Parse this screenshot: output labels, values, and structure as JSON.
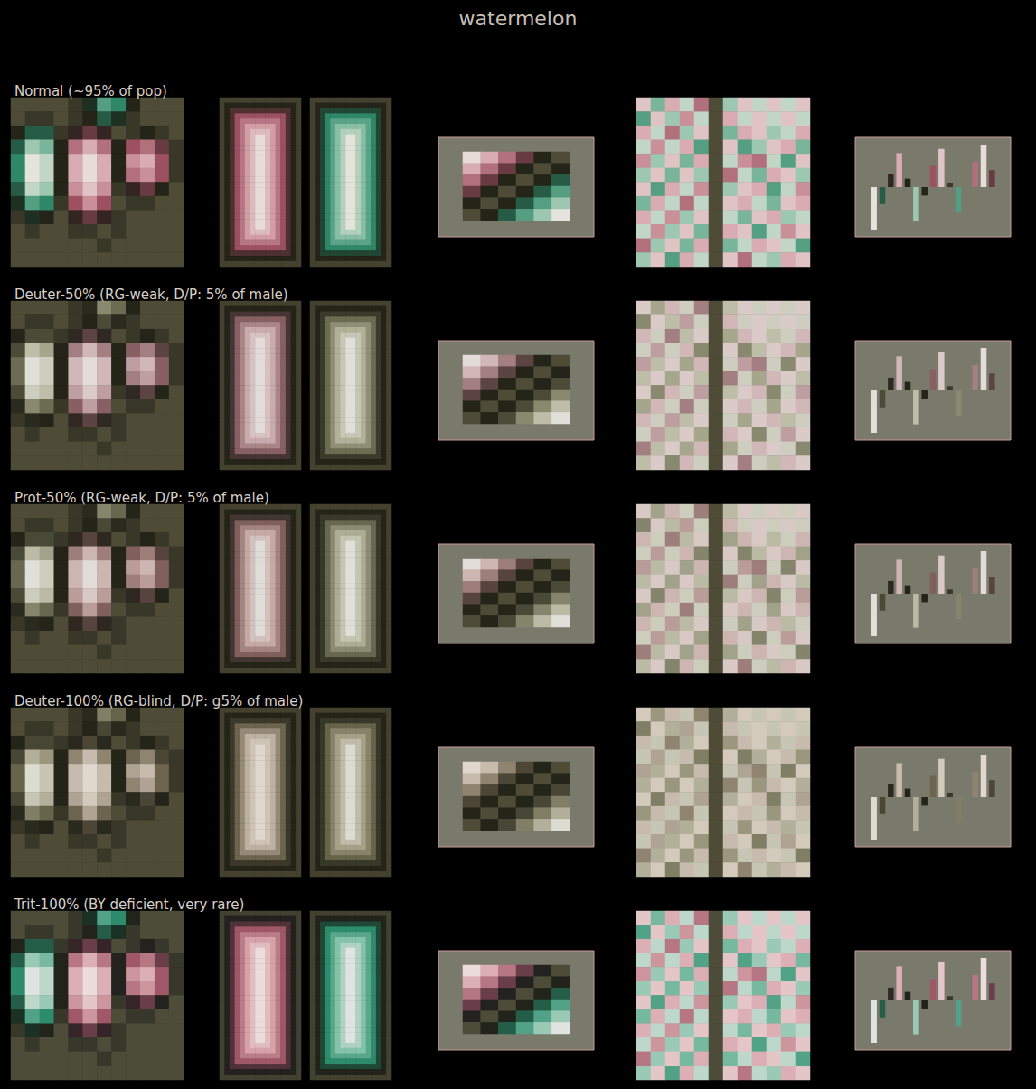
{
  "chart_data": {
    "type": "heatmap",
    "title": "watermelon",
    "tick_labels": false,
    "color_range": [
      -1,
      1
    ],
    "ylim": [
      -1,
      1
    ],
    "rows": [
      {
        "label": "Normal (~95% of pop)",
        "colors": [
          "#e4e4dc",
          "#8cc0a8",
          "#2e8868",
          "#1a1a12",
          "#4e4c36",
          "#1a1a12",
          "#9c5060",
          "#d4a0a8",
          "#e8dcd8"
        ]
      },
      {
        "label": "Deuter-50% (RG-weak, D/P: 5% of male)",
        "colors": [
          "#e0e0d8",
          "#b4b49c",
          "#6c6c52",
          "#1a1a12",
          "#4e4c36",
          "#1a1a12",
          "#886064",
          "#ccaeb0",
          "#e4dcd8"
        ]
      },
      {
        "label": "Prot-50% (RG-weak, D/P: 5% of male)",
        "colors": [
          "#e0e0d8",
          "#b0b098",
          "#686850",
          "#1a1a12",
          "#4e4c36",
          "#1a1a12",
          "#80605c",
          "#c8aca8",
          "#e2dcd8"
        ]
      },
      {
        "label": "Deuter-100% (RG-blind, D/P: g5% of male)",
        "colors": [
          "#dcdcd0",
          "#a8a48c",
          "#66644a",
          "#1a1a12",
          "#4e4c36",
          "#1a1a12",
          "#6c644e",
          "#c0b4a4",
          "#e0d8cc"
        ]
      },
      {
        "label": "Trit-100% (BY deficient, very rare)",
        "colors": [
          "#e0e4e0",
          "#88c4ac",
          "#2c8c6c",
          "#181a14",
          "#4c4c38",
          "#1a1818",
          "#a05868",
          "#d8a4ac",
          "#ecdcdc"
        ]
      }
    ],
    "panels": [
      {
        "type": "heatmap",
        "values": [
          [
            0,
            0,
            0,
            0,
            0.1,
            -0.3,
            -0.6,
            -0.5,
            -0.2,
            0,
            0,
            0
          ],
          [
            0,
            -0.1,
            -0.1,
            0,
            0.1,
            -0.2,
            -0.4,
            -0.3,
            -0.1,
            0,
            0,
            0
          ],
          [
            -0.2,
            -0.4,
            -0.4,
            -0.1,
            0.3,
            0.4,
            0.3,
            0,
            0.1,
            0.2,
            0.1,
            0
          ],
          [
            -0.4,
            -0.8,
            -0.7,
            -0.2,
            0.6,
            0.8,
            0.6,
            0.2,
            0.5,
            0.6,
            0.4,
            0.1
          ],
          [
            -0.5,
            -1,
            -0.9,
            -0.2,
            0.8,
            1,
            0.8,
            0.2,
            0.7,
            0.8,
            0.5,
            0.1
          ],
          [
            -0.5,
            -1,
            -0.9,
            -0.2,
            0.8,
            1,
            0.8,
            0.2,
            0.6,
            0.7,
            0.5,
            0.1
          ],
          [
            -0.4,
            -0.9,
            -0.8,
            -0.2,
            0.7,
            0.9,
            0.7,
            0.1,
            0.3,
            0.4,
            0.2,
            0
          ],
          [
            -0.3,
            -0.6,
            -0.5,
            -0.1,
            0.5,
            0.7,
            0.5,
            0,
            0.1,
            0.1,
            0,
            0
          ],
          [
            -0.1,
            -0.3,
            -0.2,
            0,
            0.3,
            0.4,
            0.3,
            -0.1,
            0,
            0,
            0,
            0
          ],
          [
            0,
            -0.1,
            0,
            0,
            0.1,
            0.1,
            0,
            -0.1,
            0,
            0,
            0,
            0
          ],
          [
            0,
            0,
            0,
            0,
            0,
            0,
            -0.1,
            0,
            0,
            0,
            0,
            0
          ],
          [
            0,
            0,
            0,
            0,
            0,
            0,
            0,
            0,
            0,
            0,
            0,
            0
          ]
        ]
      },
      {
        "type": "rings",
        "values": [
          [
            0.05,
            0.2,
            0.35,
            0.5,
            0.62,
            0.74,
            0.86,
            1
          ],
          [
            -0.05,
            -0.2,
            -0.35,
            -0.5,
            -0.62,
            -0.74,
            -0.86,
            -1
          ]
        ]
      },
      {
        "type": "surface",
        "values": [
          [
            1,
            0.8,
            0.6,
            0.4,
            0.2,
            0
          ],
          [
            0.8,
            0.6,
            0.4,
            0.2,
            0,
            -0.2
          ],
          [
            0.6,
            0.4,
            0.2,
            0,
            -0.2,
            -0.4
          ],
          [
            0.4,
            0.2,
            0,
            -0.2,
            -0.4,
            -0.6
          ],
          [
            0.2,
            0,
            -0.2,
            -0.4,
            -0.6,
            -0.8
          ],
          [
            0,
            -0.2,
            -0.4,
            -0.6,
            -0.8,
            -1
          ]
        ]
      },
      {
        "type": "heatmap",
        "values": [
          [
            0.9,
            -0.7,
            0.8,
            -0.9,
            0.6,
            0,
            -0.8,
            0.9,
            -0.9,
            0.9,
            -0.9,
            0.9
          ],
          [
            -0.6,
            0.9,
            -0.8,
            0.7,
            -0.9,
            0,
            0.8,
            -0.9,
            0.9,
            -0.9,
            0.9,
            -0.9
          ],
          [
            0.8,
            -0.9,
            0.6,
            -0.8,
            0.9,
            0,
            -0.7,
            0.8,
            0.9,
            -0.8,
            -0.9,
            0.8
          ],
          [
            -0.9,
            0.7,
            -0.9,
            0.8,
            -0.6,
            0,
            0.9,
            -0.6,
            -0.8,
            0.9,
            0.8,
            -0.7
          ],
          [
            0.7,
            -0.8,
            0.9,
            -0.7,
            0.8,
            0,
            -0.9,
            0.7,
            0.6,
            -0.9,
            -0.6,
            0.9
          ],
          [
            -0.8,
            0.9,
            -0.7,
            0.9,
            -0.8,
            0,
            0.6,
            -0.9,
            -0.7,
            0.8,
            0.9,
            -0.8
          ],
          [
            0.9,
            -0.6,
            0.8,
            -0.9,
            0.7,
            0,
            -0.8,
            0.9,
            0.8,
            -0.6,
            -0.9,
            0.7
          ],
          [
            -0.7,
            0.8,
            -0.9,
            0.6,
            -0.9,
            0,
            0.9,
            0.8,
            -0.9,
            -0.7,
            0.9,
            0.8
          ],
          [
            0.8,
            -0.9,
            0.7,
            -0.8,
            0.9,
            0,
            -0.9,
            -0.7,
            0.9,
            0.8,
            -0.8,
            -0.9
          ],
          [
            -0.9,
            0.7,
            -0.8,
            0.9,
            -0.7,
            0,
            0.8,
            0.9,
            -0.6,
            -0.9,
            0.7,
            0.9
          ],
          [
            0.6,
            -0.8,
            0.9,
            -0.7,
            0.8,
            0,
            -0.7,
            -0.9,
            0.8,
            0.9,
            -0.9,
            -0.6
          ],
          [
            -0.8,
            0.9,
            -0.6,
            0.8,
            -0.9,
            0,
            0.9,
            0.6,
            -0.9,
            -0.8,
            0.8,
            0.9
          ]
        ]
      },
      {
        "type": "bar",
        "values": [
          -1,
          -0.4,
          0.3,
          0.8,
          0.2,
          -0.8,
          -0.2,
          0.5,
          0.9,
          0.1,
          -0.6,
          0,
          0.6,
          1,
          0.4
        ]
      }
    ]
  }
}
